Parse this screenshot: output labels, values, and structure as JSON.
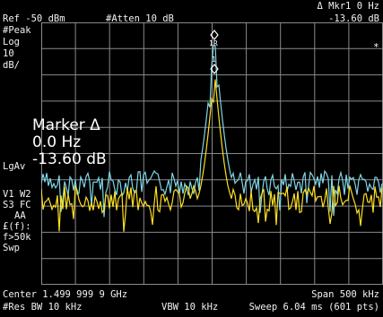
{
  "top": {
    "mkr": "Δ Mkr1  0 Hz",
    "mkr_val": "-13.60 dB",
    "ref": "Ref -50 dBm",
    "atten": "#Atten 10 dB"
  },
  "side": {
    "peak": "#Peak",
    "log": "Log",
    "scale": "10",
    "unit": "dB/",
    "lgav": "LgAv",
    "v1": "V1  W2",
    "s3": "S3  FC",
    "aa": "AA",
    "ef": "£(f):",
    "f50": "f>50k",
    "swp": "Swp"
  },
  "marker": {
    "title": "Marker Δ",
    "freq": "0.0  Hz",
    "level": "-13.60 dB",
    "label_r": "1R",
    "label_1": "1",
    "star": "*"
  },
  "bottom": {
    "center": "Center 1.499 999 9 GHz",
    "span": "Span 500 kHz",
    "rbw": "#Res BW 10 kHz",
    "vbw": "VBW 10 kHz",
    "sweep": "Sweep 6.04 ms (601 pts)"
  },
  "colors": {
    "trace1": "#ffe020",
    "trace2": "#7fd6e6",
    "grid": "#8a8a8a",
    "text": "#f2f2f2"
  }
}
